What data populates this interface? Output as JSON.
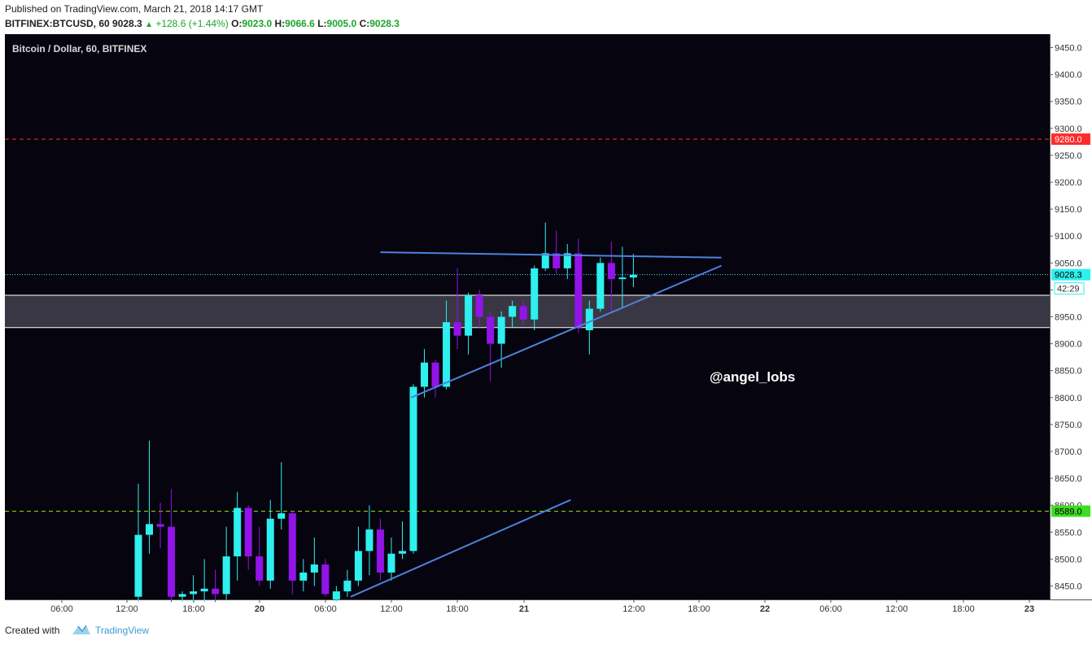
{
  "header": {
    "published": "Published on TradingView.com, March 21, 2018 14:17 GMT",
    "symbol": "BITFINEX:BTCUSD, 60",
    "last": "9028.3",
    "change": "+128.6 (+1.44%)",
    "o_label": "O:",
    "o_value": "9023.0",
    "h_label": "H:",
    "h_value": "9066.6",
    "l_label": "L:",
    "l_value": "9005.0",
    "c_label": "C:",
    "c_value": "9028.3"
  },
  "footer": {
    "created_with": "Created with",
    "brand": "TradingView"
  },
  "chart_data": {
    "type": "candlestick",
    "title": "Bitcoin / Dollar, 60, BITFINEX",
    "ylim": [
      8425,
      9475
    ],
    "y_ticks": [
      8450,
      8500,
      8550,
      8600,
      8650,
      8700,
      8750,
      8800,
      8850,
      8900,
      8950,
      9000,
      9050,
      9100,
      9150,
      9200,
      9250,
      9300,
      9350,
      9400,
      9450
    ],
    "x_tick_labels": [
      "06:00",
      "12:00",
      "18:00",
      "20",
      "06:00",
      "12:00",
      "18:00",
      "21",
      "12:00",
      "18:00",
      "22",
      "06:00",
      "12:00",
      "18:00",
      "23"
    ],
    "colors": {
      "background": "#06040f",
      "up": "#2ef0ee",
      "down": "#9214e8",
      "trendline": "#4c82dc",
      "resistance": "#ff2a2a",
      "support": "#8ee000",
      "price_line": "#2ef0ee",
      "zone": "#3a3744"
    },
    "levels": {
      "resistance": {
        "value": 9280.0,
        "label": "9280.0"
      },
      "support": {
        "value": 8589.0,
        "label": "8589.0"
      },
      "last_price": {
        "value": 9028.3,
        "label": "9028.3"
      },
      "countdown": "42:29"
    },
    "zone": [
      8930,
      8990
    ],
    "annotation": "@angel_lobs",
    "candles": [
      {
        "o": 8430,
        "h": 8640,
        "l": 8420,
        "c": 8545
      },
      {
        "o": 8545,
        "h": 8720,
        "l": 8510,
        "c": 8565
      },
      {
        "o": 8565,
        "h": 8605,
        "l": 8520,
        "c": 8560
      },
      {
        "o": 8560,
        "h": 8630,
        "l": 8420,
        "c": 8430
      },
      {
        "o": 8430,
        "h": 8440,
        "l": 8420,
        "c": 8435
      },
      {
        "o": 8435,
        "h": 8470,
        "l": 8420,
        "c": 8440
      },
      {
        "o": 8440,
        "h": 8500,
        "l": 8420,
        "c": 8445
      },
      {
        "o": 8445,
        "h": 8480,
        "l": 8420,
        "c": 8435
      },
      {
        "o": 8435,
        "h": 8560,
        "l": 8425,
        "c": 8505
      },
      {
        "o": 8505,
        "h": 8625,
        "l": 8460,
        "c": 8595
      },
      {
        "o": 8595,
        "h": 8600,
        "l": 8480,
        "c": 8505
      },
      {
        "o": 8505,
        "h": 8560,
        "l": 8450,
        "c": 8460
      },
      {
        "o": 8460,
        "h": 8610,
        "l": 8445,
        "c": 8575
      },
      {
        "o": 8575,
        "h": 8680,
        "l": 8555,
        "c": 8585
      },
      {
        "o": 8585,
        "h": 8590,
        "l": 8435,
        "c": 8460
      },
      {
        "o": 8460,
        "h": 8500,
        "l": 8440,
        "c": 8475
      },
      {
        "o": 8475,
        "h": 8540,
        "l": 8450,
        "c": 8490
      },
      {
        "o": 8490,
        "h": 8500,
        "l": 8430,
        "c": 8435
      },
      {
        "o": 8425,
        "h": 8450,
        "l": 8420,
        "c": 8440
      },
      {
        "o": 8440,
        "h": 8480,
        "l": 8430,
        "c": 8460
      },
      {
        "o": 8460,
        "h": 8560,
        "l": 8450,
        "c": 8515
      },
      {
        "o": 8515,
        "h": 8600,
        "l": 8470,
        "c": 8555
      },
      {
        "o": 8555,
        "h": 8575,
        "l": 8460,
        "c": 8475
      },
      {
        "o": 8475,
        "h": 8540,
        "l": 8460,
        "c": 8510
      },
      {
        "o": 8510,
        "h": 8570,
        "l": 8500,
        "c": 8515
      },
      {
        "o": 8515,
        "h": 8825,
        "l": 8510,
        "c": 8820
      },
      {
        "o": 8820,
        "h": 8890,
        "l": 8800,
        "c": 8865
      },
      {
        "o": 8865,
        "h": 8870,
        "l": 8800,
        "c": 8820
      },
      {
        "o": 8820,
        "h": 8980,
        "l": 8815,
        "c": 8940
      },
      {
        "o": 8940,
        "h": 9040,
        "l": 8890,
        "c": 8915
      },
      {
        "o": 8915,
        "h": 8995,
        "l": 8880,
        "c": 8990
      },
      {
        "o": 8990,
        "h": 9000,
        "l": 8930,
        "c": 8950
      },
      {
        "o": 8950,
        "h": 8960,
        "l": 8830,
        "c": 8900
      },
      {
        "o": 8900,
        "h": 8960,
        "l": 8855,
        "c": 8950
      },
      {
        "o": 8950,
        "h": 8980,
        "l": 8930,
        "c": 8970
      },
      {
        "o": 8970,
        "h": 8980,
        "l": 8935,
        "c": 8945
      },
      {
        "o": 8945,
        "h": 9045,
        "l": 8925,
        "c": 9040
      },
      {
        "o": 9040,
        "h": 9125,
        "l": 9035,
        "c": 9068
      },
      {
        "o": 9068,
        "h": 9110,
        "l": 9030,
        "c": 9040
      },
      {
        "o": 9040,
        "h": 9085,
        "l": 9020,
        "c": 9068
      },
      {
        "o": 9068,
        "h": 9095,
        "l": 8920,
        "c": 8930
      },
      {
        "o": 8925,
        "h": 8980,
        "l": 8880,
        "c": 8965
      },
      {
        "o": 8965,
        "h": 9060,
        "l": 8960,
        "c": 9050
      },
      {
        "o": 9050,
        "h": 9090,
        "l": 8960,
        "c": 9020
      },
      {
        "o": 9020,
        "h": 9080,
        "l": 8965,
        "c": 9023
      },
      {
        "o": 9023,
        "h": 9067,
        "l": 9005,
        "c": 9028
      }
    ],
    "trendlines": [
      {
        "from": {
          "i": 22.0,
          "price": 9070
        },
        "to": {
          "i": 53.0,
          "price": 9060
        }
      },
      {
        "from": {
          "i": 24.8,
          "price": 8800
        },
        "to": {
          "i": 53.0,
          "price": 9045
        }
      },
      {
        "from": {
          "i": 19.3,
          "price": 8430
        },
        "to": {
          "i": 39.3,
          "price": 8610
        }
      }
    ]
  }
}
